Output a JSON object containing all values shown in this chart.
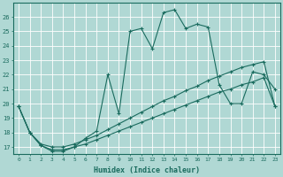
{
  "xlabel": "Humidex (Indice chaleur)",
  "xlim": [
    -0.5,
    23.5
  ],
  "ylim": [
    16.5,
    27.0
  ],
  "yticks": [
    17,
    18,
    19,
    20,
    21,
    22,
    23,
    24,
    25,
    26
  ],
  "xticks": [
    0,
    1,
    2,
    3,
    4,
    5,
    6,
    7,
    8,
    9,
    10,
    11,
    12,
    13,
    14,
    15,
    16,
    17,
    18,
    19,
    20,
    21,
    22,
    23
  ],
  "bg_color": "#b0d8d4",
  "grid_color": "#ffffff",
  "line_color": "#1a6b5e",
  "line1_x": [
    0,
    1,
    2,
    3,
    4,
    5,
    6,
    7,
    8,
    9,
    10,
    11,
    12,
    13,
    14,
    15,
    16,
    17,
    18,
    19,
    20,
    21,
    22,
    23
  ],
  "line1_y": [
    19.8,
    18.0,
    17.1,
    16.7,
    16.7,
    17.0,
    17.6,
    18.1,
    22.0,
    19.3,
    25.0,
    25.2,
    23.8,
    26.3,
    26.5,
    25.2,
    25.5,
    25.3,
    21.3,
    20.0,
    20.0,
    22.2,
    22.0,
    21.0
  ],
  "line2_x": [
    0,
    1,
    2,
    3,
    4,
    5,
    6,
    7,
    8,
    9,
    10,
    11,
    12,
    13,
    14,
    15,
    16,
    17,
    18,
    19,
    20,
    21,
    22,
    23
  ],
  "line2_y": [
    19.8,
    18.0,
    17.2,
    17.0,
    17.0,
    17.2,
    17.5,
    17.8,
    18.2,
    18.6,
    19.0,
    19.4,
    19.8,
    20.2,
    20.5,
    20.9,
    21.2,
    21.6,
    21.9,
    22.2,
    22.5,
    22.7,
    22.9,
    19.8
  ],
  "line3_x": [
    0,
    1,
    2,
    3,
    4,
    5,
    6,
    7,
    8,
    9,
    10,
    11,
    12,
    13,
    14,
    15,
    16,
    17,
    18,
    19,
    20,
    21,
    22,
    23
  ],
  "line3_y": [
    19.8,
    18.0,
    17.1,
    16.8,
    16.8,
    17.0,
    17.2,
    17.5,
    17.8,
    18.1,
    18.4,
    18.7,
    19.0,
    19.3,
    19.6,
    19.9,
    20.2,
    20.5,
    20.8,
    21.0,
    21.3,
    21.5,
    21.8,
    19.8
  ]
}
